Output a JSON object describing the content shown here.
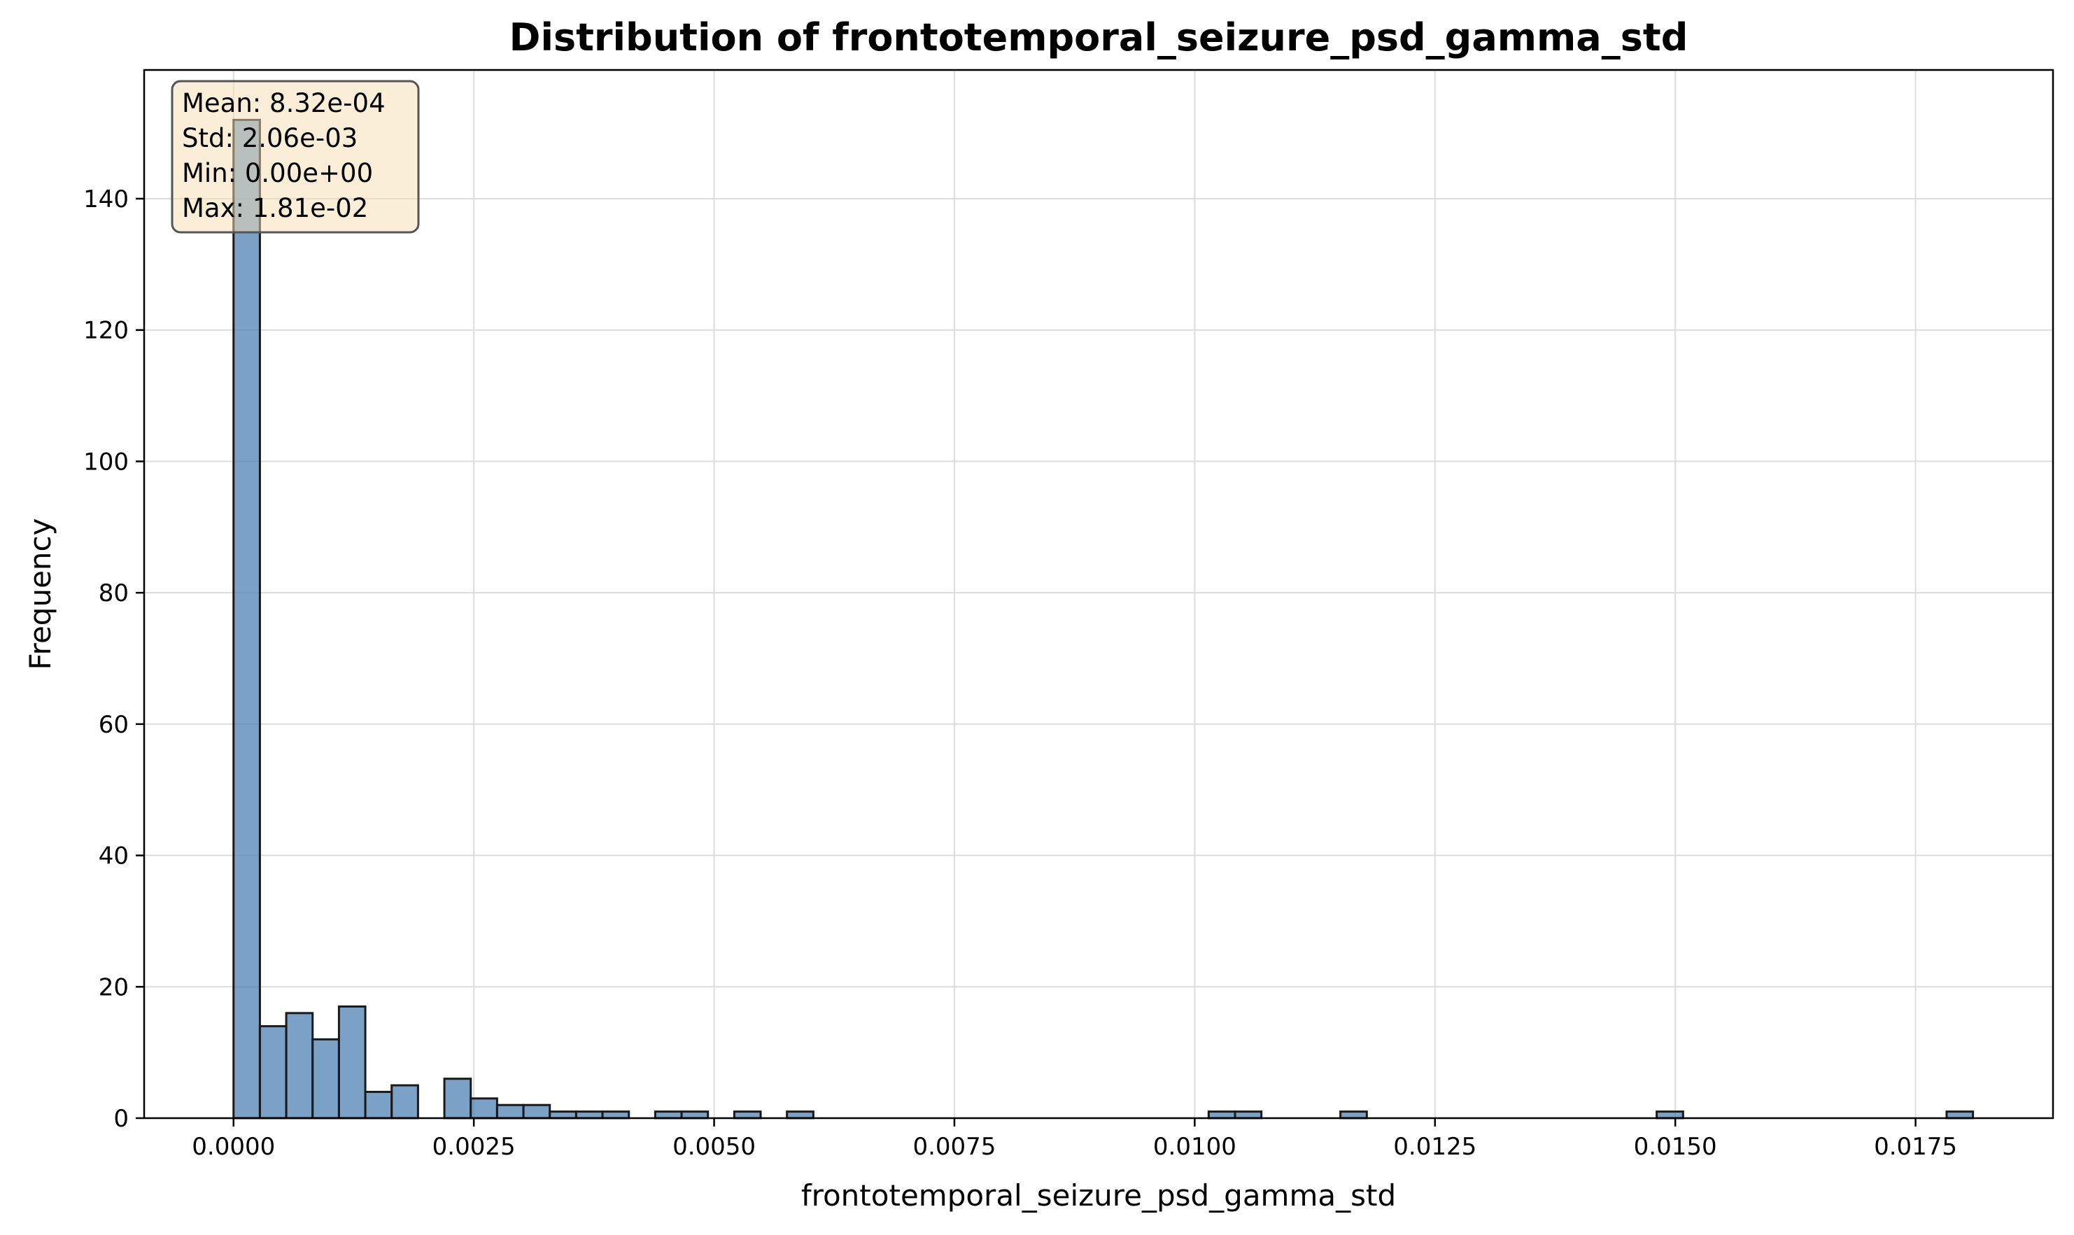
{
  "chart_data": {
    "type": "bar",
    "title": "Distribution of frontotemporal_seizure_psd_gamma_std",
    "xlabel": "frontotemporal_seizure_psd_gamma_std",
    "ylabel": "Frequency",
    "xlim": [
      -0.00093,
      0.01893
    ],
    "ylim": [
      0,
      159.6
    ],
    "x_ticks": [
      0.0,
      0.0025,
      0.005,
      0.0075,
      0.01,
      0.0125,
      0.015,
      0.0175
    ],
    "x_tick_labels": [
      "0.0000",
      "0.0025",
      "0.0050",
      "0.0075",
      "0.0100",
      "0.0125",
      "0.0150",
      "0.0175"
    ],
    "y_ticks": [
      0,
      20,
      40,
      60,
      80,
      100,
      120,
      140
    ],
    "y_tick_labels": [
      "0",
      "20",
      "40",
      "60",
      "80",
      "100",
      "120",
      "140"
    ],
    "bin_start": 0.0,
    "bin_width": 0.0002742,
    "counts": [
      152,
      14,
      16,
      12,
      17,
      4,
      5,
      0,
      6,
      3,
      2,
      2,
      1,
      1,
      1,
      0,
      1,
      1,
      0,
      1,
      0,
      1,
      0,
      0,
      0,
      0,
      0,
      0,
      0,
      0,
      0,
      0,
      0,
      0,
      0,
      0,
      0,
      1,
      1,
      0,
      0,
      0,
      1,
      0,
      0,
      0,
      0,
      0,
      0,
      0,
      0,
      0,
      0,
      0,
      1,
      0,
      0,
      0,
      0,
      0,
      0,
      0,
      0,
      0,
      0,
      1
    ],
    "grid": true,
    "bar_color": "#4f81b4",
    "bar_edge_color": "#1a1a1a",
    "stats_box": {
      "lines": [
        "Mean: 8.32e-04",
        "Std: 2.06e-03",
        "Min: 0.00e+00",
        "Max: 1.81e-02"
      ],
      "placement": "top-left",
      "face_color": "#f5deb3",
      "edge_color": "#555555"
    }
  }
}
